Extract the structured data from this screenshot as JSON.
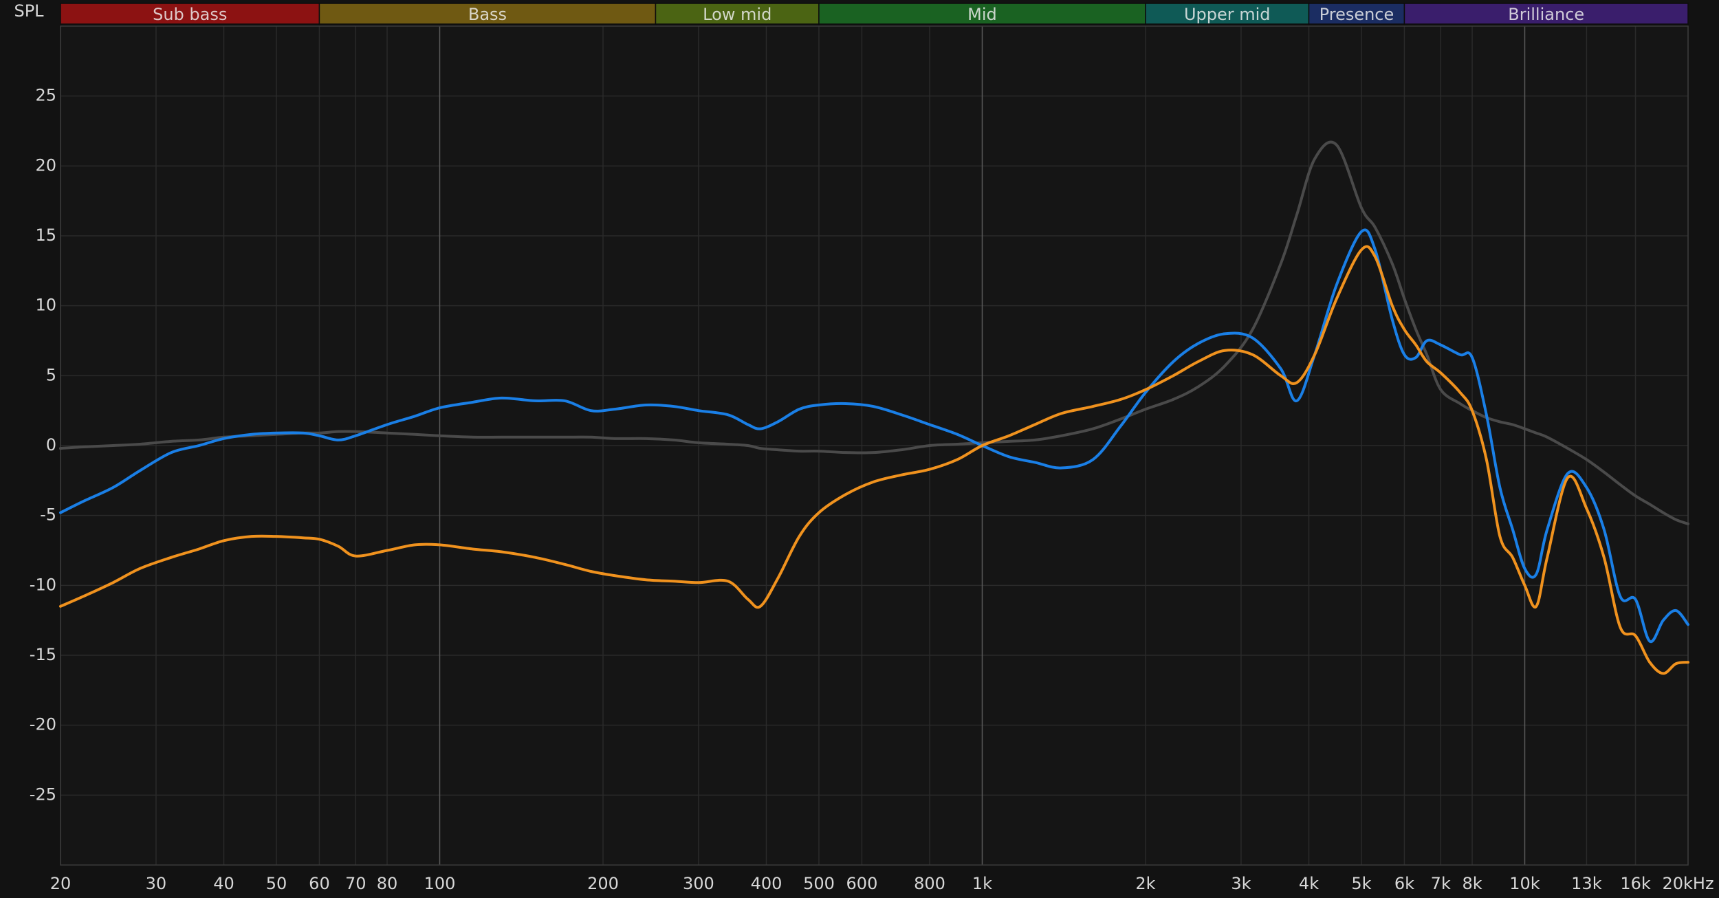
{
  "chart_data": {
    "type": "line",
    "y_label": "SPL",
    "log_x": true,
    "grid": true,
    "bands": [
      {
        "name": "Sub bass",
        "from": 20,
        "to": 60,
        "color": "#8c1212"
      },
      {
        "name": "Bass",
        "from": 60,
        "to": 250,
        "color": "#6f5912"
      },
      {
        "name": "Low mid",
        "from": 250,
        "to": 500,
        "color": "#4b6413"
      },
      {
        "name": "Mid",
        "from": 500,
        "to": 2000,
        "color": "#1a6222"
      },
      {
        "name": "Upper mid",
        "from": 2000,
        "to": 4000,
        "color": "#0f5a56"
      },
      {
        "name": "Presence",
        "from": 4000,
        "to": 6000,
        "color": "#1b2d62"
      },
      {
        "name": "Brilliance",
        "from": 6000,
        "to": 20000,
        "color": "#3a1e6c"
      }
    ],
    "xlim": [
      20,
      20000
    ],
    "xticks": [
      20,
      30,
      40,
      50,
      60,
      70,
      80,
      100,
      200,
      300,
      400,
      500,
      600,
      800,
      {
        "value": 1000,
        "label": "1k"
      },
      {
        "value": 2000,
        "label": "2k"
      },
      {
        "value": 3000,
        "label": "3k"
      },
      {
        "value": 4000,
        "label": "4k"
      },
      {
        "value": 5000,
        "label": "5k"
      },
      {
        "value": 6000,
        "label": "6k"
      },
      {
        "value": 7000,
        "label": "7k"
      },
      {
        "value": 8000,
        "label": "8k"
      },
      {
        "value": 10000,
        "label": "10k"
      },
      {
        "value": 13000,
        "label": "13k"
      },
      {
        "value": 16000,
        "label": "16k"
      },
      {
        "value": 20000,
        "label": "20kHz"
      }
    ],
    "ylim": [
      -30,
      30
    ],
    "yticks": [
      -25,
      -20,
      -15,
      -10,
      -5,
      0,
      5,
      10,
      15,
      20,
      25
    ],
    "x": [
      20,
      22,
      25,
      28,
      32,
      36,
      40,
      45,
      50,
      56,
      60,
      65,
      70,
      80,
      90,
      100,
      115,
      130,
      150,
      170,
      190,
      210,
      240,
      270,
      300,
      340,
      370,
      390,
      420,
      460,
      500,
      560,
      630,
      710,
      800,
      900,
      1000,
      1120,
      1250,
      1400,
      1600,
      1800,
      2000,
      2250,
      2500,
      2800,
      3150,
      3550,
      3800,
      4100,
      4500,
      5000,
      5300,
      5700,
      6000,
      6300,
      6600,
      7000,
      7600,
      8000,
      8500,
      9000,
      9500,
      10000,
      10500,
      11000,
      12000,
      13000,
      14000,
      15000,
      16000,
      17000,
      18000,
      19000,
      20000
    ],
    "series": [
      {
        "color": "#4a4a4a",
        "values": [
          -0.2,
          -0.1,
          0.0,
          0.1,
          0.3,
          0.4,
          0.6,
          0.7,
          0.8,
          0.9,
          0.9,
          1.0,
          1.0,
          0.9,
          0.8,
          0.7,
          0.6,
          0.6,
          0.6,
          0.6,
          0.6,
          0.5,
          0.5,
          0.4,
          0.2,
          0.1,
          0.0,
          -0.2,
          -0.3,
          -0.4,
          -0.4,
          -0.5,
          -0.5,
          -0.3,
          0.0,
          0.1,
          0.2,
          0.3,
          0.4,
          0.7,
          1.2,
          1.9,
          2.6,
          3.3,
          4.2,
          5.7,
          8.3,
          13.0,
          16.5,
          20.5,
          21.5,
          17.0,
          15.6,
          13.0,
          10.5,
          8.3,
          6.5,
          4.0,
          3.0,
          2.5,
          2.0,
          1.7,
          1.5,
          1.2,
          0.9,
          0.6,
          -0.2,
          -1.0,
          -1.9,
          -2.8,
          -3.6,
          -4.2,
          -4.8,
          -5.3,
          -5.6
        ]
      },
      {
        "color": "#1a7fe6",
        "values": [
          -4.8,
          -4.0,
          -3.0,
          -1.8,
          -0.5,
          0.0,
          0.5,
          0.8,
          0.9,
          0.9,
          0.7,
          0.4,
          0.7,
          1.5,
          2.1,
          2.7,
          3.1,
          3.4,
          3.2,
          3.2,
          2.5,
          2.6,
          2.9,
          2.8,
          2.5,
          2.2,
          1.5,
          1.2,
          1.7,
          2.6,
          2.9,
          3.0,
          2.8,
          2.2,
          1.5,
          0.8,
          0.0,
          -0.8,
          -1.2,
          -1.6,
          -1.0,
          1.4,
          3.8,
          6.0,
          7.3,
          8.0,
          7.7,
          5.5,
          3.2,
          6.5,
          11.5,
          15.3,
          14.0,
          9.0,
          6.5,
          6.3,
          7.5,
          7.2,
          6.5,
          6.3,
          2.2,
          -3.0,
          -6.0,
          -8.8,
          -9.2,
          -6.0,
          -2.0,
          -3.0,
          -6.0,
          -10.8,
          -11.0,
          -14.0,
          -12.5,
          -11.8,
          -12.8
        ]
      },
      {
        "color": "#f0921e",
        "values": [
          -11.5,
          -10.8,
          -9.8,
          -8.8,
          -8.0,
          -7.4,
          -6.8,
          -6.5,
          -6.5,
          -6.6,
          -6.7,
          -7.2,
          -7.9,
          -7.5,
          -7.1,
          -7.1,
          -7.4,
          -7.6,
          -8.0,
          -8.5,
          -9.0,
          -9.3,
          -9.6,
          -9.7,
          -9.8,
          -9.7,
          -11.0,
          -11.5,
          -9.5,
          -6.5,
          -4.8,
          -3.5,
          -2.6,
          -2.1,
          -1.7,
          -1.0,
          0.0,
          0.7,
          1.5,
          2.3,
          2.8,
          3.3,
          4.0,
          5.0,
          6.0,
          6.8,
          6.5,
          5.0,
          4.5,
          6.5,
          10.5,
          14.0,
          13.5,
          10.0,
          8.3,
          7.2,
          6.0,
          5.2,
          3.8,
          2.5,
          -1.0,
          -6.5,
          -8.0,
          -10.0,
          -11.5,
          -8.0,
          -2.3,
          -4.5,
          -8.0,
          -13.0,
          -13.6,
          -15.5,
          -16.3,
          -15.6,
          -15.5
        ]
      }
    ]
  }
}
